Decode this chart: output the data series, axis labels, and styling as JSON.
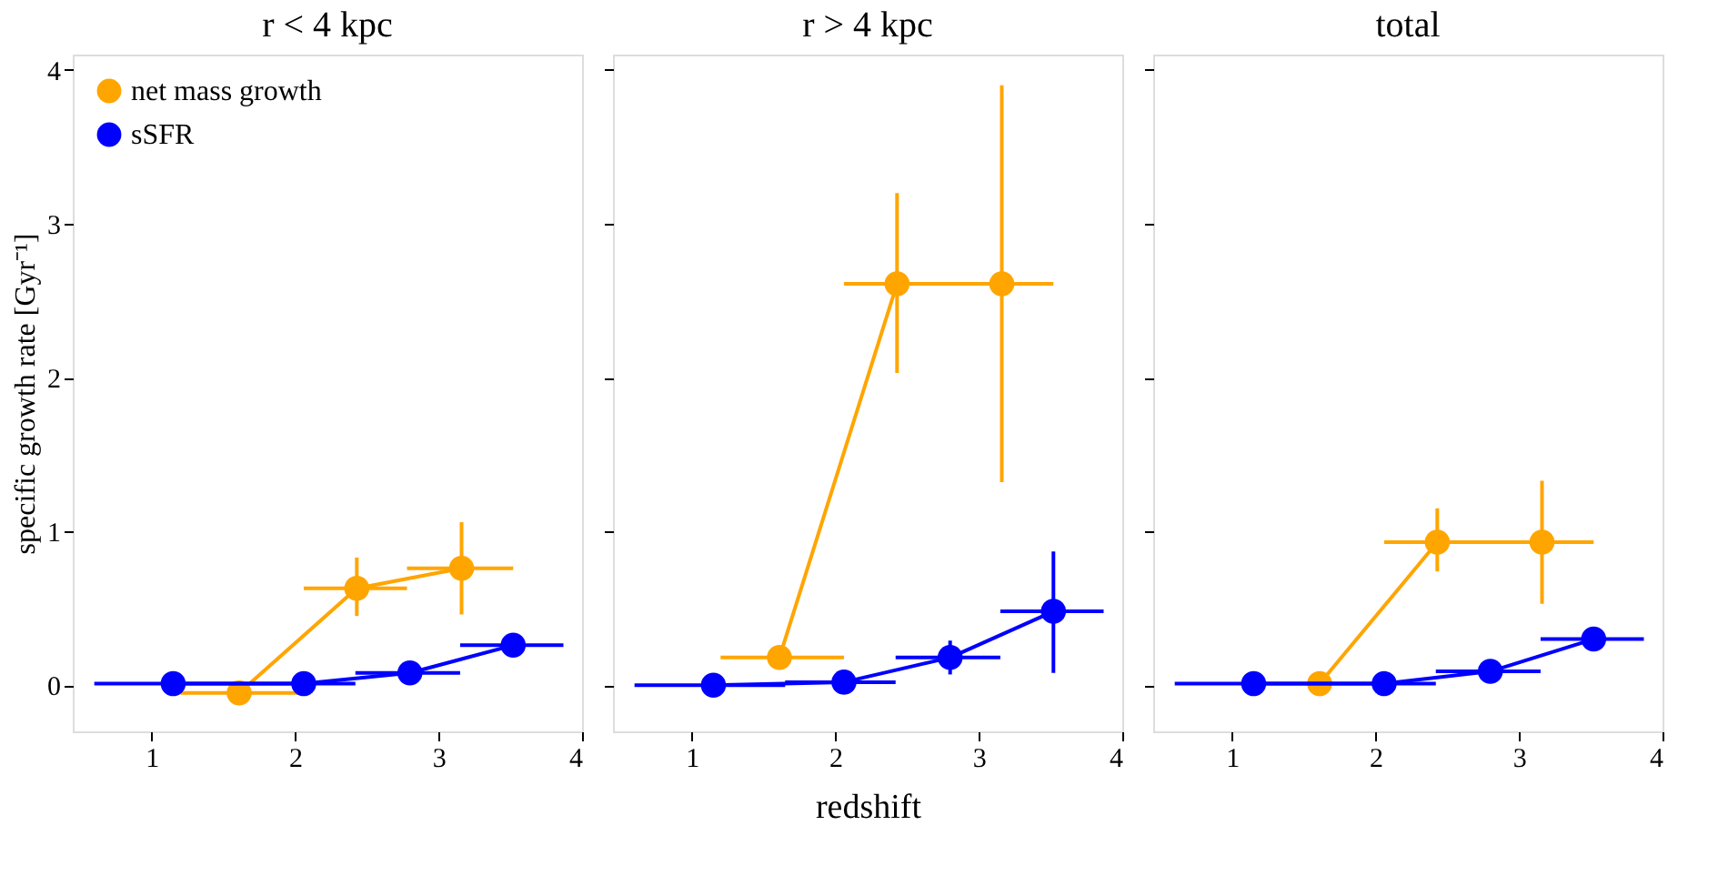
{
  "chart_data": [
    {
      "type": "line",
      "title": "r < 4 kpc",
      "ylabel": "specific growth rate [Gyr⁻¹]",
      "xlim": [
        0.45,
        4.0
      ],
      "ylim": [
        -0.3,
        4.1
      ],
      "xticks": [
        1,
        2,
        3,
        4
      ],
      "yticks": [
        0,
        1,
        2,
        3,
        4
      ],
      "grid": false,
      "legend": "top left",
      "marker": "circle",
      "line_style": "solid",
      "series": [
        {
          "name": "net mass growth",
          "color": "#ffa500",
          "x": [
            1.61,
            2.43,
            3.16
          ],
          "values": [
            -0.05,
            0.63,
            0.76
          ],
          "errors": [
            null,
            [
              0.45,
              0.83
            ],
            [
              0.46,
              1.06
            ]
          ],
          "xerrors": [
            [
              1.2,
              2.06
            ],
            [
              2.06,
              2.78
            ],
            [
              2.78,
              3.52
            ]
          ]
        },
        {
          "name": "sSFR",
          "color": "#0000ff",
          "x": [
            1.15,
            2.06,
            2.8,
            3.52
          ],
          "values": [
            0.01,
            0.01,
            0.08,
            0.26
          ],
          "errors": [
            null,
            null,
            null,
            null
          ],
          "xerrors": [
            [
              0.6,
              1.65
            ],
            [
              1.65,
              2.42
            ],
            [
              2.42,
              3.15
            ],
            [
              3.15,
              3.87
            ]
          ]
        }
      ]
    },
    {
      "type": "line",
      "title": "r > 4 kpc",
      "xlabel": "redshift",
      "xlim": [
        0.45,
        4.0
      ],
      "ylim": [
        -0.3,
        4.1
      ],
      "xticks": [
        1,
        2,
        3,
        4
      ],
      "yticks": [
        0,
        1,
        2,
        3,
        4
      ],
      "grid": false,
      "legend": false,
      "tick_labels": "x",
      "marker": "circle",
      "line_style": "solid",
      "series": [
        {
          "color": "#ffa500",
          "x": [
            1.61,
            2.43,
            3.16
          ],
          "values": [
            0.18,
            2.61,
            2.61
          ],
          "errors": [
            null,
            [
              2.03,
              3.2
            ],
            [
              1.32,
              3.9
            ]
          ],
          "xerrors": [
            [
              1.2,
              2.06
            ],
            [
              2.06,
              2.78
            ],
            [
              2.78,
              3.52
            ]
          ]
        },
        {
          "color": "#0000ff",
          "x": [
            1.15,
            2.06,
            2.8,
            3.52
          ],
          "values": [
            0.0,
            0.02,
            0.18,
            0.48
          ],
          "errors": [
            null,
            null,
            [
              0.07,
              0.29
            ],
            [
              0.08,
              0.87
            ]
          ],
          "xerrors": [
            [
              0.6,
              1.65
            ],
            [
              1.65,
              2.42
            ],
            [
              2.42,
              3.15
            ],
            [
              3.15,
              3.87
            ]
          ]
        }
      ]
    },
    {
      "type": "line",
      "title": "total",
      "xlim": [
        0.45,
        4.0
      ],
      "ylim": [
        -0.3,
        4.1
      ],
      "xticks": [
        1,
        2,
        3,
        4
      ],
      "yticks": [
        0,
        1,
        2,
        3,
        4
      ],
      "grid": false,
      "legend": false,
      "tick_labels": "x",
      "marker": "circle",
      "line_style": "solid",
      "series": [
        {
          "color": "#ffa500",
          "x": [
            1.61,
            2.43,
            3.16
          ],
          "values": [
            0.01,
            0.93,
            0.93
          ],
          "errors": [
            null,
            [
              0.74,
              1.15
            ],
            [
              0.53,
              1.33
            ]
          ],
          "xerrors": [
            null,
            [
              2.06,
              2.78
            ],
            [
              2.78,
              3.52
            ]
          ]
        },
        {
          "color": "#0000ff",
          "x": [
            1.15,
            2.06,
            2.8,
            3.52
          ],
          "values": [
            0.01,
            0.01,
            0.09,
            0.3
          ],
          "errors": [
            null,
            null,
            null,
            null
          ],
          "xerrors": [
            [
              0.6,
              1.65
            ],
            [
              1.65,
              2.42
            ],
            [
              2.42,
              3.15
            ],
            [
              3.15,
              3.87
            ]
          ]
        }
      ]
    }
  ]
}
